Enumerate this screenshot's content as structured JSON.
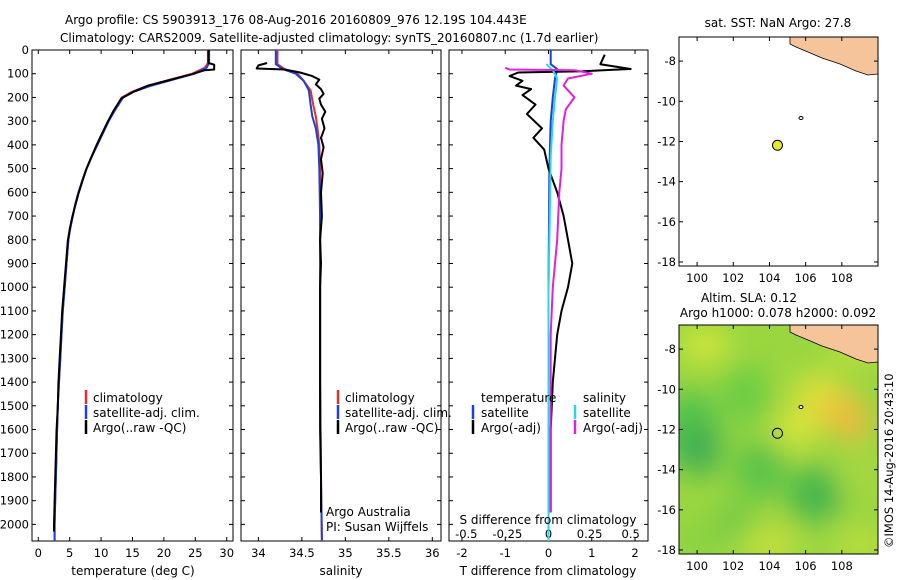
{
  "header": {
    "line1": "Argo profile: CS 5903913_176 08-Aug-2016 20160809_976 12.19S 104.443E",
    "line2": "Climatology: CARS2009. Satellite-adjusted climatology: synTS_20160807.nc (1.7d earlier)"
  },
  "colors": {
    "climatology": "#e0302b",
    "satellite": "#1f3fd6",
    "argo": "#000000",
    "sal_sat": "#27d8e0",
    "sal_argo": "#e020e0",
    "land": "#f6c49a",
    "argo_marker": "#e8e832"
  },
  "chart_data": [
    {
      "type": "line",
      "xlabel": "temperature (deg C)",
      "ylabel": "",
      "xlim": [
        -1,
        31
      ],
      "ylim": [
        2070,
        0
      ],
      "xticks": [
        0,
        5,
        10,
        15,
        20,
        25,
        30
      ],
      "yticks": [
        0,
        100,
        200,
        300,
        400,
        500,
        600,
        700,
        800,
        900,
        1000,
        1100,
        1200,
        1300,
        1400,
        1500,
        1600,
        1700,
        1800,
        1900,
        2000
      ],
      "legend": [
        "climatology",
        "satellite-adj. clim.",
        "Argo(..raw -QC)"
      ],
      "series": [
        {
          "name": "climatology",
          "color_key": "climatology",
          "points": [
            [
              27.0,
              0
            ],
            [
              27.0,
              55
            ],
            [
              26.5,
              75
            ],
            [
              24.5,
              100
            ],
            [
              21,
              125
            ],
            [
              17.5,
              150
            ],
            [
              15,
              175
            ],
            [
              13.3,
              200
            ],
            [
              12.2,
              250
            ],
            [
              11.2,
              300
            ],
            [
              10.3,
              350
            ],
            [
              9.4,
              400
            ],
            [
              8.5,
              450
            ],
            [
              7.7,
              500
            ],
            [
              7.0,
              550
            ],
            [
              6.4,
              600
            ],
            [
              5.9,
              650
            ],
            [
              5.5,
              700
            ],
            [
              5.1,
              750
            ],
            [
              4.8,
              800
            ],
            [
              4.5,
              900
            ],
            [
              4.2,
              1000
            ],
            [
              3.9,
              1100
            ],
            [
              3.7,
              1200
            ],
            [
              3.5,
              1300
            ],
            [
              3.3,
              1400
            ],
            [
              3.1,
              1500
            ],
            [
              3.0,
              1600
            ],
            [
              2.9,
              1700
            ],
            [
              2.8,
              1800
            ],
            [
              2.7,
              1900
            ],
            [
              2.6,
              2000
            ],
            [
              2.6,
              2070
            ]
          ]
        },
        {
          "name": "satellite-adj. clim.",
          "color_key": "satellite",
          "points": [
            [
              27.2,
              0
            ],
            [
              27.2,
              55
            ],
            [
              26.8,
              75
            ],
            [
              24.8,
              100
            ],
            [
              21.5,
              125
            ],
            [
              18,
              150
            ],
            [
              15.3,
              175
            ],
            [
              13.5,
              200
            ],
            [
              12.3,
              250
            ],
            [
              11.2,
              300
            ],
            [
              10.3,
              350
            ],
            [
              9.4,
              400
            ],
            [
              8.5,
              450
            ],
            [
              7.7,
              500
            ],
            [
              7.0,
              550
            ],
            [
              6.4,
              600
            ],
            [
              5.9,
              650
            ],
            [
              5.5,
              700
            ],
            [
              5.1,
              750
            ],
            [
              4.8,
              800
            ],
            [
              4.5,
              900
            ],
            [
              4.2,
              1000
            ],
            [
              3.9,
              1100
            ],
            [
              3.7,
              1200
            ],
            [
              3.5,
              1300
            ],
            [
              3.3,
              1400
            ],
            [
              3.1,
              1500
            ],
            [
              3.0,
              1600
            ],
            [
              2.9,
              1700
            ],
            [
              2.8,
              1800
            ],
            [
              2.7,
              1900
            ],
            [
              2.6,
              2000
            ],
            [
              2.6,
              2070
            ]
          ]
        },
        {
          "name": "Argo(..raw -QC)",
          "color_key": "argo",
          "points": [
            [
              27.1,
              0
            ],
            [
              27.1,
              55
            ],
            [
              28.0,
              62
            ],
            [
              28.0,
              82
            ],
            [
              26.5,
              85
            ],
            [
              24.5,
              102
            ],
            [
              21,
              126
            ],
            [
              17.5,
              150
            ],
            [
              15,
              178
            ],
            [
              13.2,
              205
            ],
            [
              12.0,
              255
            ],
            [
              11.0,
              305
            ],
            [
              10.1,
              355
            ],
            [
              9.2,
              405
            ],
            [
              8.4,
              455
            ],
            [
              7.6,
              505
            ],
            [
              7.0,
              555
            ],
            [
              6.4,
              605
            ],
            [
              5.9,
              655
            ],
            [
              5.4,
              705
            ],
            [
              5.0,
              755
            ],
            [
              4.7,
              805
            ],
            [
              4.4,
              905
            ],
            [
              4.1,
              1005
            ],
            [
              3.8,
              1105
            ],
            [
              3.6,
              1205
            ],
            [
              3.4,
              1305
            ],
            [
              3.2,
              1405
            ],
            [
              3.1,
              1505
            ],
            [
              2.9,
              1605
            ],
            [
              2.8,
              1705
            ],
            [
              2.7,
              1805
            ],
            [
              2.6,
              1905
            ],
            [
              2.5,
              2005
            ],
            [
              2.5,
              2030
            ]
          ]
        }
      ]
    },
    {
      "type": "line",
      "xlabel": "salinity",
      "xlim": [
        33.8,
        36.1
      ],
      "ylim": [
        2070,
        0
      ],
      "xticks": [
        34,
        34.5,
        35,
        35.5,
        36
      ],
      "legend": [
        "climatology",
        "satellite-adj. clim.",
        "Argo(..raw -QC)"
      ],
      "annotation": [
        "Argo Australia",
        "PI: Susan Wijffels"
      ],
      "series": [
        {
          "name": "climatology",
          "color_key": "climatology",
          "points": [
            [
              34.22,
              0
            ],
            [
              34.22,
              60
            ],
            [
              34.3,
              80
            ],
            [
              34.45,
              100
            ],
            [
              34.52,
              130
            ],
            [
              34.6,
              170
            ],
            [
              34.63,
              230
            ],
            [
              34.66,
              280
            ],
            [
              34.68,
              330
            ],
            [
              34.7,
              400
            ],
            [
              34.71,
              500
            ],
            [
              34.71,
              700
            ],
            [
              34.71,
              1000
            ],
            [
              34.71,
              1400
            ],
            [
              34.72,
              1800
            ],
            [
              34.73,
              2070
            ]
          ]
        },
        {
          "name": "satellite-adj. clim.",
          "color_key": "satellite",
          "points": [
            [
              34.2,
              0
            ],
            [
              34.2,
              60
            ],
            [
              34.28,
              80
            ],
            [
              34.43,
              100
            ],
            [
              34.52,
              130
            ],
            [
              34.58,
              170
            ],
            [
              34.6,
              230
            ],
            [
              34.62,
              280
            ],
            [
              34.66,
              330
            ],
            [
              34.69,
              400
            ],
            [
              34.7,
              500
            ],
            [
              34.71,
              700
            ],
            [
              34.71,
              1000
            ],
            [
              34.71,
              1400
            ],
            [
              34.72,
              1800
            ],
            [
              34.73,
              2070
            ]
          ]
        },
        {
          "name": "Argo(..raw -QC)",
          "color_key": "argo",
          "points": [
            [
              34.1,
              55
            ],
            [
              34.0,
              65
            ],
            [
              33.98,
              78
            ],
            [
              34.3,
              82
            ],
            [
              34.48,
              95
            ],
            [
              34.62,
              110
            ],
            [
              34.7,
              125
            ],
            [
              34.66,
              145
            ],
            [
              34.72,
              165
            ],
            [
              34.75,
              185
            ],
            [
              34.7,
              205
            ],
            [
              34.72,
              230
            ],
            [
              34.77,
              260
            ],
            [
              34.73,
              290
            ],
            [
              34.76,
              330
            ],
            [
              34.72,
              370
            ],
            [
              34.75,
              410
            ],
            [
              34.72,
              460
            ],
            [
              34.74,
              520
            ],
            [
              34.72,
              600
            ],
            [
              34.73,
              700
            ],
            [
              34.71,
              800
            ],
            [
              34.72,
              900
            ],
            [
              34.71,
              1000
            ],
            [
              34.71,
              1200
            ],
            [
              34.71,
              1400
            ],
            [
              34.71,
              1600
            ],
            [
              34.72,
              1800
            ],
            [
              34.72,
              1950
            ]
          ]
        }
      ]
    },
    {
      "type": "line",
      "xlabel": "T difference from climatology",
      "xlabel_top": "S difference from climatology",
      "xlim": [
        -2.3,
        2.3
      ],
      "ylim": [
        2070,
        0
      ],
      "xticks": [
        -2,
        -1,
        0,
        1,
        2
      ],
      "xticks_top_labels": [
        "-0.5",
        "-0.25",
        "0",
        "0.25",
        "0.5"
      ],
      "xticks_top_values": [
        -1.9,
        -0.95,
        0,
        0.95,
        1.9
      ],
      "legend_headers": [
        "temperature",
        "salinity"
      ],
      "legend": [
        "satellite",
        "Argo(-adj)",
        "satellite",
        "Argo(-adj)"
      ],
      "series": [
        {
          "name": "satellite",
          "color_key": "satellite",
          "points": [
            [
              0.05,
              0
            ],
            [
              0.05,
              60
            ],
            [
              0.2,
              80
            ],
            [
              0.15,
              120
            ],
            [
              0.1,
              200
            ],
            [
              0.05,
              300
            ],
            [
              0.02,
              500
            ],
            [
              0.0,
              1000
            ],
            [
              0.0,
              2070
            ]
          ]
        },
        {
          "name": "Argo(-adj)",
          "color_key": "argo",
          "points": [
            [
              1.3,
              20
            ],
            [
              1.2,
              60
            ],
            [
              1.9,
              80
            ],
            [
              1.5,
              83
            ],
            [
              0.8,
              90
            ],
            [
              -0.7,
              95
            ],
            [
              -0.9,
              110
            ],
            [
              -0.6,
              130
            ],
            [
              -0.75,
              150
            ],
            [
              -0.4,
              165
            ],
            [
              -0.6,
              190
            ],
            [
              -0.3,
              230
            ],
            [
              -0.5,
              270
            ],
            [
              -0.15,
              330
            ],
            [
              -0.35,
              370
            ],
            [
              -0.1,
              420
            ],
            [
              0.0,
              500
            ],
            [
              0.2,
              600
            ],
            [
              0.35,
              700
            ],
            [
              0.45,
              800
            ],
            [
              0.55,
              900
            ],
            [
              0.45,
              1000
            ],
            [
              0.3,
              1100
            ],
            [
              0.2,
              1200
            ],
            [
              0.1,
              1400
            ],
            [
              0.05,
              1600
            ],
            [
              0.05,
              1800
            ],
            [
              0.05,
              1950
            ]
          ]
        },
        {
          "name": "salinity satellite",
          "color_key": "sal_sat",
          "points": [
            [
              -0.05,
              60
            ],
            [
              0.1,
              85
            ],
            [
              0.2,
              120
            ],
            [
              0.15,
              200
            ],
            [
              0.1,
              300
            ],
            [
              0.05,
              450
            ],
            [
              0.03,
              700
            ],
            [
              0.0,
              1000
            ],
            [
              0.0,
              1500
            ],
            [
              0.0,
              2070
            ]
          ]
        },
        {
          "name": "salinity Argo(-adj)",
          "color_key": "sal_argo",
          "points": [
            [
              -1.0,
              75
            ],
            [
              -0.9,
              82
            ],
            [
              0.6,
              85
            ],
            [
              1.0,
              100
            ],
            [
              0.45,
              120
            ],
            [
              0.35,
              150
            ],
            [
              0.6,
              200
            ],
            [
              0.4,
              250
            ],
            [
              0.35,
              300
            ],
            [
              0.3,
              400
            ],
            [
              0.3,
              500
            ],
            [
              0.25,
              600
            ],
            [
              0.2,
              800
            ],
            [
              0.1,
              1000
            ],
            [
              0.05,
              1200
            ],
            [
              0.05,
              1500
            ],
            [
              0.05,
              1800
            ],
            [
              0.05,
              1950
            ]
          ]
        }
      ]
    },
    {
      "type": "scatter",
      "title": "sat. SST: NaN Argo: 27.8",
      "xlim": [
        99,
        110
      ],
      "ylim": [
        -18.2,
        -6.8
      ],
      "xticks": [
        100,
        102,
        104,
        106,
        108
      ],
      "yticks": [
        -8,
        -10,
        -12,
        -14,
        -16,
        -18
      ],
      "points": [
        [
          104.443,
          -12.19
        ]
      ]
    },
    {
      "type": "heatmap",
      "title": "Altim. SLA: 0.12",
      "subtitle": "Argo h1000: 0.078 h2000: 0.092",
      "xlim": [
        99,
        110
      ],
      "ylim": [
        -18.2,
        -6.8
      ],
      "xticks": [
        100,
        102,
        104,
        106,
        108
      ],
      "yticks": [
        -8,
        -10,
        -12,
        -14,
        -16,
        -18
      ],
      "points": [
        [
          104.443,
          -12.19
        ]
      ]
    }
  ],
  "credit": "©IMOS 14-Aug-2016 20:43:10"
}
